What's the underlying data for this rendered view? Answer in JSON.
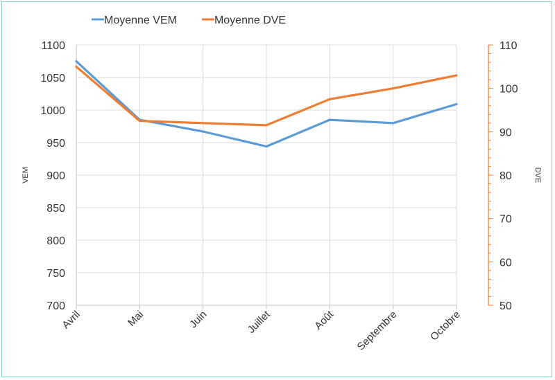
{
  "chart_data": {
    "type": "line",
    "categories": [
      "Avril",
      "Mai",
      "Juin",
      "Juillet",
      "Août",
      "Septembre",
      "Octobre"
    ],
    "series": [
      {
        "name": "Moyenne VEM",
        "axis": "left",
        "color": "#5b9bd5",
        "values": [
          1075,
          985,
          967,
          944,
          985,
          980,
          1009
        ]
      },
      {
        "name": "Moyenne DVE",
        "axis": "right",
        "color": "#ed7d31",
        "values": [
          105,
          92.5,
          92,
          91.5,
          97.5,
          100,
          103
        ]
      }
    ],
    "y_left": {
      "label": "VEM",
      "min": 700,
      "max": 1100,
      "ticks": [
        700,
        750,
        800,
        850,
        900,
        950,
        1000,
        1050,
        1100
      ]
    },
    "y_right": {
      "label": "DVE",
      "min": 50,
      "max": 110,
      "ticks": [
        50,
        60,
        70,
        80,
        90,
        100,
        110
      ],
      "color": "#ed7d31"
    },
    "legend_position": "top-left",
    "grid": true
  }
}
